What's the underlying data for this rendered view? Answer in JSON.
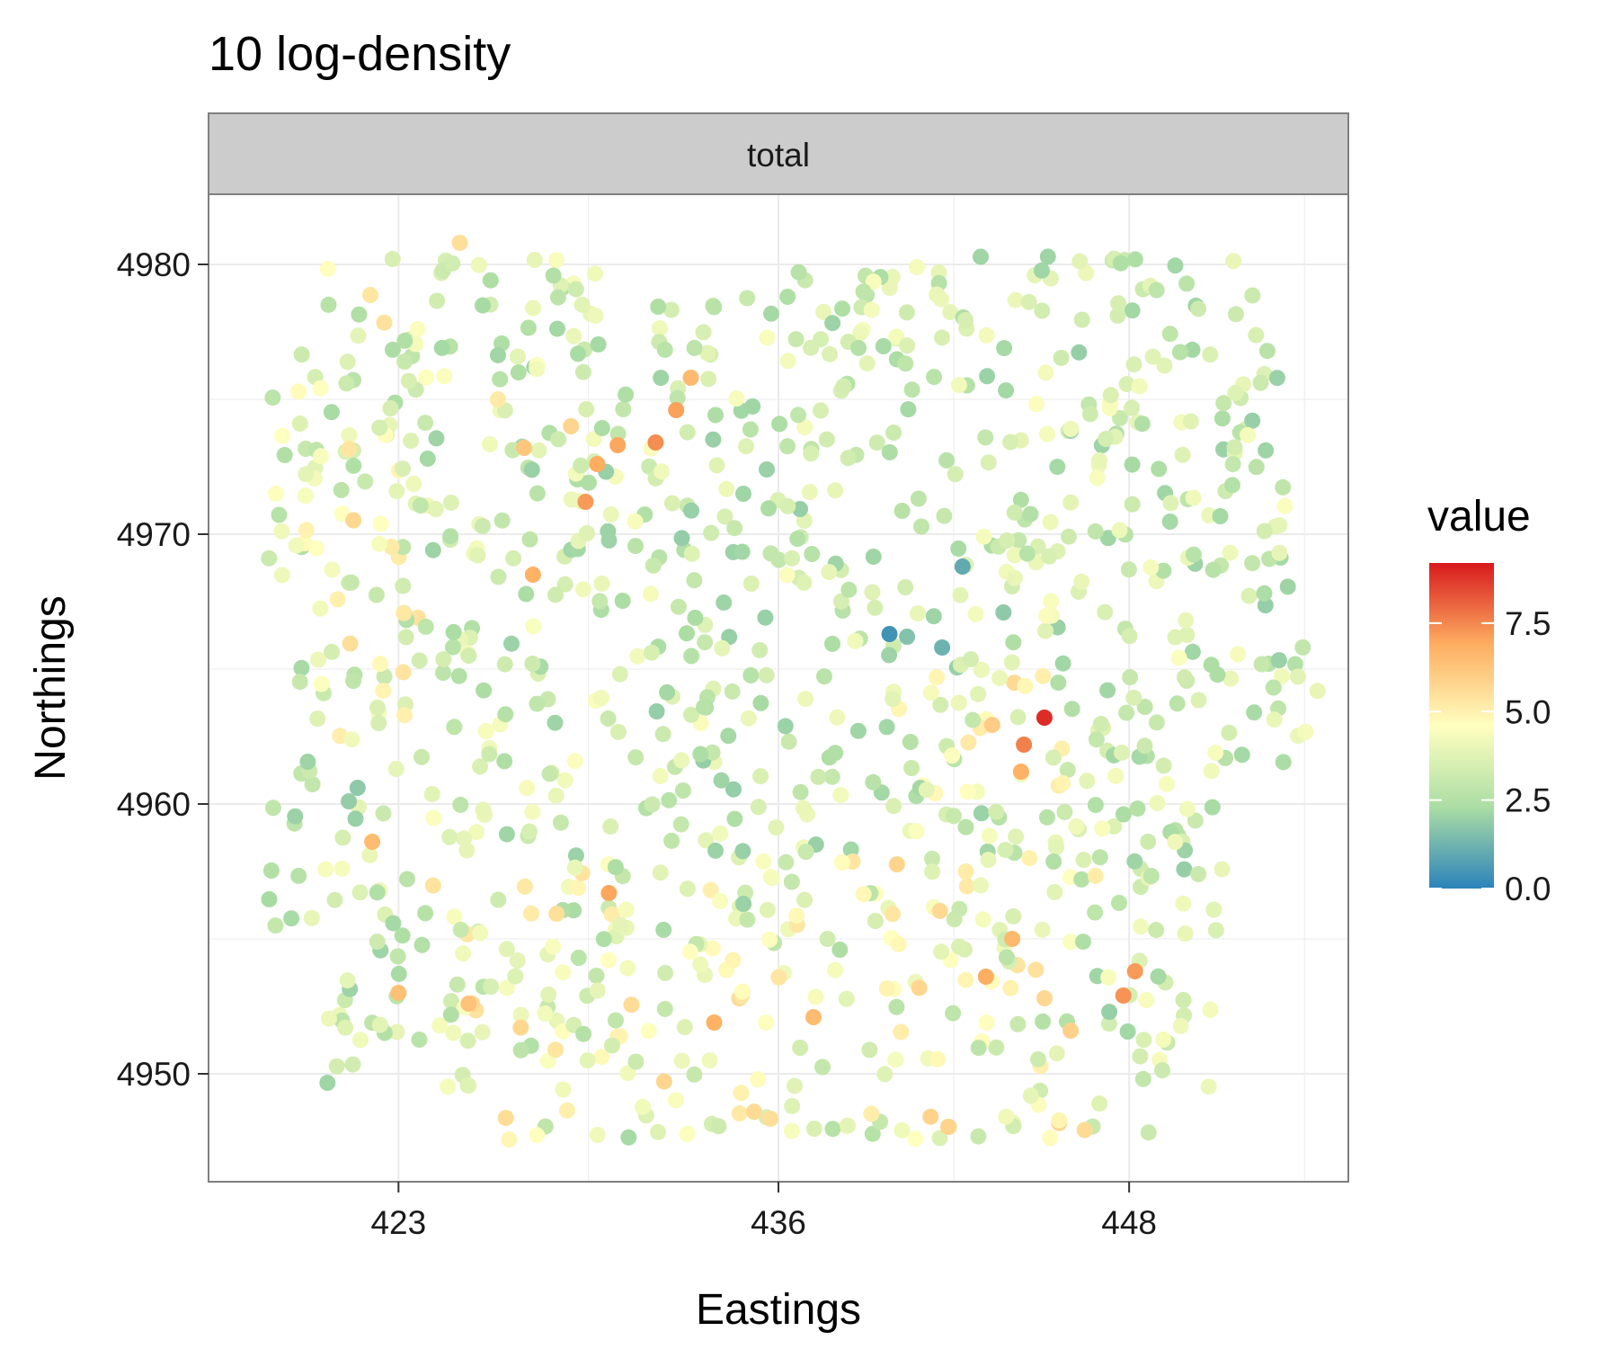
{
  "chart_data": {
    "type": "scatter",
    "title": "10 log-density",
    "facet_label": "total",
    "xlabel": "Eastings",
    "ylabel": "Northings",
    "x_ticks": [
      423,
      436,
      448
    ],
    "y_ticks": [
      4950,
      4960,
      4970,
      4980
    ],
    "xlim": [
      416.5,
      455.5
    ],
    "ylim": [
      4946.0,
      4982.6
    ],
    "grid": true,
    "legend": {
      "title": "value",
      "position": "right",
      "ticks": [
        "0.0",
        "2.5",
        "5.0",
        "7.5"
      ],
      "range": [
        0,
        9.2
      ],
      "colormap": "Spectral (reversed)"
    },
    "colors": {
      "low": "#2b83ba",
      "mid_low": "#abdda4",
      "mid": "#ffffbf",
      "mid_high": "#fdae61",
      "high": "#d7191c",
      "panel_border": "#7f7f7f",
      "strip_fill": "#cccccc",
      "grid": "#ebebeb"
    },
    "points_note": "approx. 1400 points; listed notable values",
    "points": [
      {
        "x": 422.8,
        "y": 4980.2,
        "v": 3.5
      },
      {
        "x": 424.0,
        "y": 4972.8,
        "v": 2.2
      },
      {
        "x": 425.1,
        "y": 4980.8,
        "v": 5.5
      },
      {
        "x": 426.4,
        "y": 4975.0,
        "v": 5.2
      },
      {
        "x": 427.3,
        "y": 4973.2,
        "v": 6.2
      },
      {
        "x": 427.6,
        "y": 4968.5,
        "v": 6.8
      },
      {
        "x": 428.9,
        "y": 4974.0,
        "v": 5.8
      },
      {
        "x": 429.4,
        "y": 4971.2,
        "v": 7.2
      },
      {
        "x": 429.8,
        "y": 4972.6,
        "v": 6.9
      },
      {
        "x": 430.5,
        "y": 4973.3,
        "v": 7.0
      },
      {
        "x": 431.8,
        "y": 4973.4,
        "v": 7.4
      },
      {
        "x": 432.5,
        "y": 4974.6,
        "v": 7.1
      },
      {
        "x": 433.0,
        "y": 4975.8,
        "v": 6.6
      },
      {
        "x": 434.8,
        "y": 4971.5,
        "v": 2.1
      },
      {
        "x": 435.6,
        "y": 4972.4,
        "v": 2.0
      },
      {
        "x": 439.8,
        "y": 4966.3,
        "v": 0.4
      },
      {
        "x": 440.4,
        "y": 4966.2,
        "v": 1.6
      },
      {
        "x": 441.6,
        "y": 4965.8,
        "v": 1.2
      },
      {
        "x": 442.3,
        "y": 4968.8,
        "v": 1.0
      },
      {
        "x": 443.7,
        "y": 4967.1,
        "v": 1.8
      },
      {
        "x": 444.4,
        "y": 4962.2,
        "v": 7.6
      },
      {
        "x": 444.3,
        "y": 4961.2,
        "v": 6.8
      },
      {
        "x": 445.1,
        "y": 4963.2,
        "v": 8.9
      },
      {
        "x": 421.6,
        "y": 4960.6,
        "v": 1.8
      },
      {
        "x": 421.3,
        "y": 4960.1,
        "v": 1.9
      },
      {
        "x": 422.1,
        "y": 4958.6,
        "v": 6.5
      },
      {
        "x": 430.2,
        "y": 4956.7,
        "v": 7.0
      },
      {
        "x": 434.8,
        "y": 4956.3,
        "v": 2.0
      },
      {
        "x": 438.1,
        "y": 4954.6,
        "v": 2.4
      },
      {
        "x": 433.8,
        "y": 4951.9,
        "v": 6.8
      },
      {
        "x": 437.2,
        "y": 4952.1,
        "v": 6.5
      },
      {
        "x": 443.1,
        "y": 4953.6,
        "v": 6.9
      },
      {
        "x": 444.0,
        "y": 4955.0,
        "v": 6.6
      },
      {
        "x": 448.2,
        "y": 4953.8,
        "v": 7.2
      },
      {
        "x": 447.8,
        "y": 4952.9,
        "v": 7.3
      },
      {
        "x": 446.0,
        "y": 4951.6,
        "v": 5.9
      },
      {
        "x": 425.4,
        "y": 4952.6,
        "v": 6.3
      },
      {
        "x": 423.0,
        "y": 4953.0,
        "v": 6.4
      }
    ]
  }
}
